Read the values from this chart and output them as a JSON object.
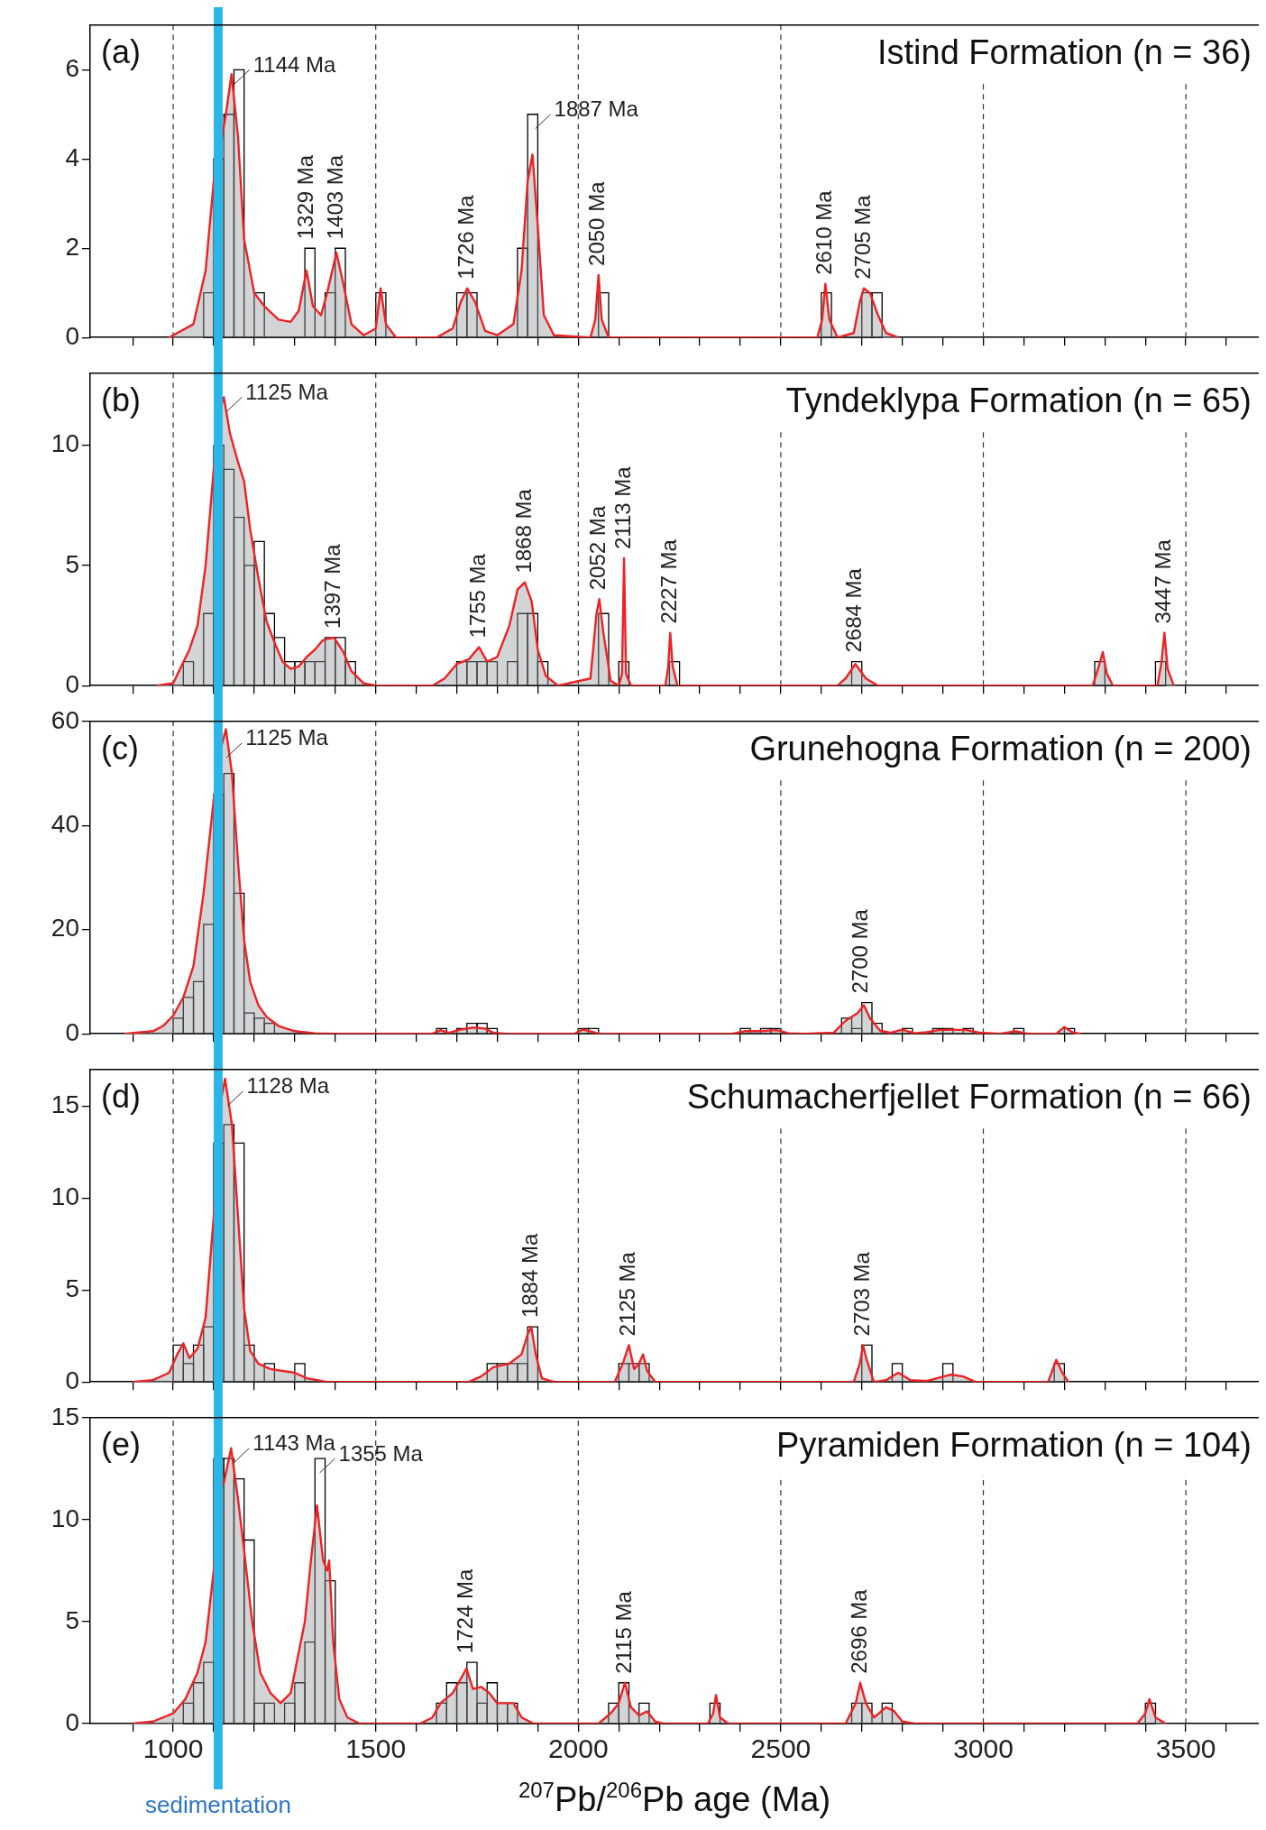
{
  "chart_data": [
    {
      "type": "histogram",
      "title": "Istind Formation (n = 36)",
      "color": "#000000",
      "bins": [
        1075,
        1100,
        1125,
        1150,
        1175,
        1200,
        1225,
        1250,
        1275,
        1300,
        1325,
        1350,
        1375,
        1400,
        1425,
        1450,
        1475,
        1500,
        1525,
        1550,
        1575,
        1600,
        1625,
        1650,
        1675,
        1700,
        1725,
        1750,
        1775,
        1800,
        1825,
        1850,
        1875,
        1900,
        1925,
        1950,
        1975,
        2000,
        2025,
        2050,
        2075,
        2100,
        2125,
        2150,
        2175,
        2200,
        2225,
        2250,
        2275,
        2300,
        2325,
        2350,
        2375,
        2400,
        2425,
        2450,
        2475,
        2500,
        2525,
        2550,
        2575,
        2600,
        2625,
        2650,
        2675,
        2700,
        2725,
        2750
      ],
      "values": [
        1,
        4,
        5,
        6,
        0,
        1,
        0,
        0,
        0,
        0,
        2,
        0,
        1,
        2,
        0,
        0,
        0,
        1,
        0,
        0,
        0,
        0,
        0,
        0,
        0,
        1,
        1,
        0,
        0,
        0,
        0,
        2,
        5,
        0,
        0,
        0,
        0,
        0,
        0,
        1,
        0,
        0,
        0,
        0,
        0,
        0,
        0,
        0,
        0,
        0,
        0,
        0,
        0,
        0,
        0,
        0,
        0,
        0,
        0,
        0,
        0,
        1,
        0,
        0,
        0,
        1,
        1
      ],
      "series": [
        {
          "type": "area",
          "color": "#ed2224",
          "x": [
            990,
            1000,
            1050,
            1080,
            1100,
            1115,
            1130,
            1144,
            1160,
            1175,
            1200,
            1225,
            1260,
            1290,
            1310,
            1329,
            1345,
            1365,
            1380,
            1403,
            1420,
            1440,
            1470,
            1500,
            1512,
            1525,
            1550,
            1650,
            1690,
            1710,
            1726,
            1745,
            1770,
            1800,
            1840,
            1860,
            1875,
            1887,
            1900,
            1915,
            1940,
            2030,
            2042,
            2050,
            2058,
            2075,
            2590,
            2602,
            2610,
            2620,
            2640,
            2680,
            2695,
            2705,
            2720,
            2740,
            2760,
            2790
          ],
          "values": [
            0,
            0.05,
            0.3,
            1.5,
            3.5,
            4.2,
            5.0,
            5.9,
            4.5,
            2.2,
            1.0,
            0.7,
            0.4,
            0.35,
            0.6,
            1.5,
            0.7,
            0.5,
            1.0,
            1.9,
            1.2,
            0.3,
            0.05,
            0.2,
            1.1,
            0.3,
            0,
            0,
            0.2,
            0.8,
            1.1,
            0.8,
            0.15,
            0.05,
            0.3,
            1.5,
            3.5,
            4.1,
            2.5,
            0.5,
            0.05,
            0,
            0.4,
            1.4,
            0.4,
            0,
            0,
            0.4,
            1.2,
            0.4,
            0,
            0.1,
            0.8,
            1.1,
            1.0,
            0.5,
            0.1,
            0
          ]
        }
      ],
      "xlim": [
        795,
        3680
      ],
      "xticks": [
        {
          "value": 900,
          "label": null
        },
        1000,
        {
          "value": 1100,
          "label": null
        },
        {
          "value": 1200,
          "label": null
        },
        {
          "value": 1300,
          "label": null
        },
        {
          "value": 1400,
          "label": null
        },
        1500,
        {
          "value": 1600,
          "label": null
        },
        {
          "value": 1700,
          "label": null
        },
        {
          "value": 1800,
          "label": null
        },
        {
          "value": 1900,
          "label": null
        },
        2000,
        {
          "value": 2100,
          "label": null
        },
        {
          "value": 2200,
          "label": null
        },
        {
          "value": 2300,
          "label": null
        },
        {
          "value": 2400,
          "label": null
        },
        2500,
        {
          "value": 2600,
          "label": null
        },
        {
          "value": 2700,
          "label": null
        },
        {
          "value": 2800,
          "label": null
        },
        {
          "value": 2900,
          "label": null
        },
        3000,
        {
          "value": 3100,
          "label": null
        },
        {
          "value": 3200,
          "label": null
        },
        {
          "value": 3300,
          "label": null
        },
        {
          "value": 3400,
          "label": null
        },
        3500,
        {
          "value": 3600,
          "label": null
        }
      ],
      "ylim": [
        0,
        7
      ],
      "yticks": [
        0,
        2,
        4,
        6
      ],
      "grid": "x",
      "tick_labels": "y",
      "bands": [
        {
          "axis": "x",
          "from": 1100,
          "to": 1122,
          "color": "#29b6e8"
        }
      ],
      "annotations": [
        "(a)",
        {
          "text": "1144 Ma",
          "x": 1144,
          "y": 6
        },
        {
          "text": "1329 Ma",
          "x": 1329,
          "y": 2
        },
        {
          "text": "1403 Ma",
          "x": 1403,
          "y": 2
        },
        {
          "text": "1726 Ma",
          "x": 1726,
          "y": 1.1
        },
        {
          "text": "1887 Ma",
          "x": 1887,
          "y": 5
        },
        {
          "text": "2050 Ma",
          "x": 2050,
          "y": 1.4
        },
        {
          "text": "2610 Ma",
          "x": 2610,
          "y": 1.2
        },
        {
          "text": "2705 Ma",
          "x": 2705,
          "y": 1.1
        }
      ]
    },
    {
      "type": "histogram",
      "title": "Tyndeklypa Formation (n = 65)",
      "color": "#000000",
      "bins": [
        1025,
        1050,
        1075,
        1100,
        1125,
        1150,
        1175,
        1200,
        1225,
        1250,
        1275,
        1300,
        1325,
        1350,
        1375,
        1400,
        1425,
        1450,
        1475,
        1500,
        1525,
        1550,
        1575,
        1600,
        1625,
        1650,
        1675,
        1700,
        1725,
        1750,
        1775,
        1800,
        1825,
        1850,
        1875,
        1900,
        1925,
        1950,
        1975,
        2000,
        2025,
        2050,
        2075,
        2100,
        2125,
        2150,
        2175,
        2200,
        2225,
        2250,
        2275,
        2300,
        2325,
        2350,
        2375,
        2400,
        2425,
        2450,
        2475,
        2500,
        2525,
        2550,
        2575,
        2600,
        2625,
        2650,
        2675,
        2700,
        2725,
        2750,
        2775,
        2800,
        2825,
        2850,
        2875,
        2900,
        2925,
        2950,
        2975,
        3000,
        3025,
        3050,
        3075,
        3100,
        3125,
        3150,
        3175,
        3200,
        3225,
        3250,
        3275,
        3300,
        3325,
        3350,
        3375,
        3400,
        3425,
        3450
      ],
      "values": [
        1,
        0,
        3,
        10,
        9,
        7,
        5,
        6,
        3,
        2,
        1,
        1,
        1,
        1,
        2,
        2,
        1,
        0,
        0,
        0,
        0,
        0,
        0,
        0,
        0,
        0,
        0,
        1,
        1,
        1,
        1,
        0,
        1,
        3,
        3,
        1,
        0,
        0,
        0,
        0,
        0,
        3,
        0,
        1,
        0,
        0,
        0,
        0,
        1,
        0,
        0,
        0,
        0,
        0,
        0,
        0,
        0,
        0,
        0,
        0,
        0,
        0,
        0,
        0,
        0,
        0,
        1,
        0,
        0,
        0,
        0,
        0,
        0,
        0,
        0,
        0,
        0,
        0,
        0,
        0,
        0,
        0,
        0,
        0,
        0,
        0,
        0,
        0,
        0,
        0,
        1,
        0,
        0,
        0,
        0,
        0,
        1
      ],
      "series": [
        {
          "type": "area",
          "color": "#ed2224",
          "x": [
            960,
            1000,
            1020,
            1040,
            1060,
            1080,
            1100,
            1115,
            1125,
            1140,
            1160,
            1175,
            1190,
            1210,
            1230,
            1250,
            1270,
            1290,
            1310,
            1330,
            1350,
            1370,
            1397,
            1420,
            1440,
            1470,
            1500,
            1640,
            1670,
            1700,
            1730,
            1755,
            1775,
            1800,
            1830,
            1850,
            1868,
            1885,
            1900,
            1920,
            1950,
            2030,
            2045,
            2052,
            2062,
            2080,
            2100,
            2108,
            2113,
            2118,
            2130,
            2215,
            2222,
            2227,
            2233,
            2245,
            2640,
            2660,
            2684,
            2710,
            2740,
            3270,
            3285,
            3295,
            3305,
            3320,
            3430,
            3440,
            3447,
            3455,
            3470
          ],
          "values": [
            0,
            0.1,
            0.8,
            1.5,
            2.5,
            5,
            9,
            11.5,
            12,
            10.5,
            9.3,
            8.5,
            6.5,
            4.5,
            2.7,
            1.8,
            1.0,
            0.7,
            0.8,
            1.2,
            1.5,
            1.9,
            2.0,
            1.4,
            0.6,
            0.1,
            0,
            0,
            0.3,
            0.9,
            1.1,
            1.6,
            1.0,
            1.2,
            2.5,
            4,
            4.3,
            3.5,
            1.5,
            0.4,
            0,
            0.3,
            3.0,
            3.6,
            2.2,
            0.2,
            0,
            0.5,
            5.3,
            0.5,
            0,
            0,
            0.8,
            2.2,
            0.8,
            0,
            0,
            0.3,
            0.9,
            0.3,
            0,
            0,
            0.8,
            1.4,
            0.5,
            0,
            0,
            1,
            2.2,
            0.7,
            0
          ]
        }
      ],
      "xlim": [
        795,
        3680
      ],
      "xticks": [
        {
          "value": 900,
          "label": null
        },
        1000,
        {
          "value": 1100,
          "label": null
        },
        {
          "value": 1200,
          "label": null
        },
        {
          "value": 1300,
          "label": null
        },
        {
          "value": 1400,
          "label": null
        },
        1500,
        {
          "value": 1600,
          "label": null
        },
        {
          "value": 1700,
          "label": null
        },
        {
          "value": 1800,
          "label": null
        },
        {
          "value": 1900,
          "label": null
        },
        2000,
        {
          "value": 2100,
          "label": null
        },
        {
          "value": 2200,
          "label": null
        },
        {
          "value": 2300,
          "label": null
        },
        {
          "value": 2400,
          "label": null
        },
        2500,
        {
          "value": 2600,
          "label": null
        },
        {
          "value": 2700,
          "label": null
        },
        {
          "value": 2800,
          "label": null
        },
        {
          "value": 2900,
          "label": null
        },
        3000,
        {
          "value": 3100,
          "label": null
        },
        {
          "value": 3200,
          "label": null
        },
        {
          "value": 3300,
          "label": null
        },
        {
          "value": 3400,
          "label": null
        },
        3500,
        {
          "value": 3600,
          "label": null
        }
      ],
      "ylim": [
        0,
        13
      ],
      "yticks": [
        0,
        5,
        10
      ],
      "grid": "x",
      "tick_labels": "y",
      "bands": [
        {
          "axis": "x",
          "from": 1100,
          "to": 1122,
          "color": "#29b6e8"
        }
      ],
      "annotations": [
        "(b)",
        {
          "text": "1125 Ma",
          "x": 1125,
          "y": 12
        },
        {
          "text": "1397 Ma",
          "x": 1397,
          "y": 2
        },
        {
          "text": "1755 Ma",
          "x": 1755,
          "y": 1.6
        },
        {
          "text": "1868 Ma",
          "x": 1868,
          "y": 4.3
        },
        {
          "text": "2052 Ma",
          "x": 2052,
          "y": 3.6
        },
        {
          "text": "2113 Ma",
          "x": 2113,
          "y": 5.3
        },
        {
          "text": "2227 Ma",
          "x": 2227,
          "y": 2.2
        },
        {
          "text": "2684 Ma",
          "x": 2684,
          "y": 1
        },
        {
          "text": "3447 Ma",
          "x": 3447,
          "y": 2.2
        }
      ]
    },
    {
      "type": "histogram",
      "title": "Grunehogna Formation (n = 200)",
      "color": "#000000",
      "bins": [
        1000,
        1025,
        1050,
        1075,
        1100,
        1125,
        1150,
        1175,
        1200,
        1225,
        1250,
        1275,
        1300,
        1325,
        1350,
        1375,
        1400,
        1425,
        1450,
        1475,
        1500,
        1525,
        1550,
        1575,
        1600,
        1625,
        1650,
        1675,
        1700,
        1725,
        1750,
        1775,
        1800,
        1825,
        1850,
        1875,
        1900,
        1925,
        1950,
        1975,
        2000,
        2025,
        2050,
        2075,
        2100,
        2125,
        2150,
        2175,
        2200,
        2225,
        2250,
        2275,
        2300,
        2325,
        2350,
        2375,
        2400,
        2425,
        2450,
        2475,
        2500,
        2525,
        2550,
        2575,
        2600,
        2625,
        2650,
        2675,
        2700,
        2725,
        2750,
        2775,
        2800,
        2825,
        2850,
        2875,
        2900,
        2925,
        2950,
        2975,
        3000,
        3025,
        3050,
        3075,
        3100,
        3125,
        3150,
        3175,
        3200,
        3225
      ],
      "values": [
        3,
        7,
        10,
        21,
        46,
        50,
        27,
        4,
        3,
        2,
        0,
        0,
        0,
        0,
        0,
        0,
        0,
        0,
        0,
        0,
        0,
        0,
        0,
        0,
        0,
        0,
        1,
        0,
        1,
        2,
        2,
        1,
        0,
        0,
        0,
        0,
        0,
        0,
        0,
        0,
        1,
        1,
        0,
        0,
        0,
        0,
        0,
        0,
        0,
        0,
        0,
        0,
        0,
        0,
        0,
        0,
        1,
        0,
        1,
        1,
        0,
        0,
        0,
        0,
        0,
        0,
        3,
        1,
        6,
        2,
        0,
        0,
        1,
        0,
        0,
        1,
        1,
        0,
        1,
        0,
        0,
        0,
        0,
        1,
        0,
        0,
        0,
        0,
        1
      ],
      "series": [
        {
          "type": "area",
          "color": "#ed2224",
          "x": [
            880,
            950,
            975,
            1000,
            1025,
            1050,
            1075,
            1100,
            1115,
            1130,
            1145,
            1160,
            1175,
            1190,
            1210,
            1230,
            1260,
            1300,
            1350,
            1400,
            1640,
            1660,
            1680,
            1710,
            1740,
            1770,
            1790,
            1820,
            1990,
            2010,
            2030,
            2050,
            2380,
            2410,
            2450,
            2490,
            2520,
            2560,
            2630,
            2660,
            2690,
            2705,
            2720,
            2745,
            2770,
            2800,
            2830,
            2860,
            2890,
            2920,
            2960,
            2990,
            3040,
            3080,
            3110,
            3180,
            3200,
            3220,
            3240
          ],
          "values": [
            0,
            0.5,
            1.5,
            3.5,
            7,
            13,
            27,
            45,
            54,
            58.5,
            50,
            33,
            18,
            10,
            5.5,
            3.3,
            1.5,
            0.5,
            0.1,
            0,
            0,
            0.7,
            0.2,
            0.8,
            1.2,
            1,
            0.2,
            0,
            0,
            0.8,
            0.5,
            0,
            0,
            0.5,
            0.5,
            0.7,
            0.1,
            0,
            0.2,
            2.5,
            4,
            5.5,
            3,
            0.6,
            0.2,
            0.8,
            0.1,
            0.3,
            0.7,
            0.8,
            0.7,
            0.2,
            0,
            0.5,
            0,
            0,
            1.3,
            0.3,
            0
          ]
        }
      ],
      "xlim": [
        795,
        3680
      ],
      "xticks": [
        {
          "value": 900,
          "label": null
        },
        1000,
        {
          "value": 1100,
          "label": null
        },
        {
          "value": 1200,
          "label": null
        },
        {
          "value": 1300,
          "label": null
        },
        {
          "value": 1400,
          "label": null
        },
        1500,
        {
          "value": 1600,
          "label": null
        },
        {
          "value": 1700,
          "label": null
        },
        {
          "value": 1800,
          "label": null
        },
        {
          "value": 1900,
          "label": null
        },
        2000,
        {
          "value": 2100,
          "label": null
        },
        {
          "value": 2200,
          "label": null
        },
        {
          "value": 2300,
          "label": null
        },
        {
          "value": 2400,
          "label": null
        },
        2500,
        {
          "value": 2600,
          "label": null
        },
        {
          "value": 2700,
          "label": null
        },
        {
          "value": 2800,
          "label": null
        },
        {
          "value": 2900,
          "label": null
        },
        3000,
        {
          "value": 3100,
          "label": null
        },
        {
          "value": 3200,
          "label": null
        },
        {
          "value": 3300,
          "label": null
        },
        {
          "value": 3400,
          "label": null
        },
        3500,
        {
          "value": 3600,
          "label": null
        }
      ],
      "ylim": [
        0,
        60
      ],
      "yticks": [
        0,
        20,
        40,
        60
      ],
      "grid": "x",
      "tick_labels": "y",
      "bands": [
        {
          "axis": "x",
          "from": 1100,
          "to": 1122,
          "color": "#29b6e8"
        }
      ],
      "annotations": [
        "(c)",
        {
          "text": "1125 Ma",
          "x": 1125,
          "y": 58.5
        },
        {
          "text": "2700 Ma",
          "x": 2700,
          "y": 6
        }
      ]
    },
    {
      "type": "histogram",
      "title": "Schumacherfjellet Formation (n = 66)",
      "color": "#000000",
      "bins": [
        1000,
        1025,
        1050,
        1075,
        1100,
        1125,
        1150,
        1175,
        1200,
        1225,
        1250,
        1275,
        1300,
        1325,
        1350,
        1375,
        1400,
        1425,
        1450,
        1475,
        1500,
        1525,
        1550,
        1575,
        1600,
        1625,
        1650,
        1675,
        1700,
        1725,
        1750,
        1775,
        1800,
        1825,
        1850,
        1875,
        1900,
        1925,
        1950,
        1975,
        2000,
        2025,
        2050,
        2075,
        2100,
        2125,
        2150,
        2175,
        2200,
        2225,
        2250,
        2275,
        2300,
        2325,
        2350,
        2375,
        2400,
        2425,
        2450,
        2475,
        2500,
        2525,
        2550,
        2575,
        2600,
        2625,
        2650,
        2675,
        2700,
        2725,
        2750,
        2775,
        2800,
        2825,
        2850,
        2875,
        2900,
        2925,
        2950,
        2975,
        3000,
        3025,
        3050,
        3075,
        3100,
        3125,
        3150,
        3175,
        3200
      ],
      "values": [
        2,
        1,
        2,
        3,
        13,
        14,
        13,
        2,
        0,
        1,
        0,
        0,
        1,
        0,
        0,
        0,
        0,
        0,
        0,
        0,
        0,
        0,
        0,
        0,
        0,
        0,
        0,
        0,
        0,
        0,
        0,
        1,
        1,
        1,
        1,
        3,
        0,
        0,
        0,
        0,
        0,
        0,
        0,
        0,
        1,
        1,
        1,
        0,
        0,
        0,
        0,
        0,
        0,
        0,
        0,
        0,
        0,
        0,
        0,
        0,
        0,
        0,
        0,
        0,
        0,
        0,
        0,
        0,
        2,
        0,
        0,
        1,
        0,
        0,
        0,
        0,
        1,
        0,
        0,
        0,
        0,
        0,
        0,
        0,
        0,
        0,
        0,
        1
      ],
      "series": [
        {
          "type": "area",
          "color": "#ed2224",
          "x": [
            900,
            950,
            990,
            1010,
            1025,
            1040,
            1060,
            1080,
            1100,
            1115,
            1128,
            1145,
            1160,
            1175,
            1190,
            1210,
            1240,
            1270,
            1300,
            1330,
            1380,
            1730,
            1760,
            1790,
            1830,
            1860,
            1875,
            1884,
            1895,
            1910,
            1940,
            2090,
            2110,
            2125,
            2138,
            2150,
            2160,
            2170,
            2190,
            2680,
            2695,
            2703,
            2712,
            2730,
            2760,
            2790,
            2820,
            2860,
            2920,
            2950,
            2980,
            3160,
            3180,
            3195,
            3210
          ],
          "values": [
            0,
            0.1,
            0.5,
            1.5,
            2.1,
            1.3,
            1.8,
            3.5,
            9,
            15,
            16.5,
            14,
            9,
            4,
            1.7,
            1.0,
            0.7,
            0.6,
            0.5,
            0.2,
            0,
            0,
            0.3,
            0.8,
            1.0,
            1.5,
            2.6,
            3.0,
            1.5,
            0.2,
            0,
            0,
            1.0,
            2.0,
            0.7,
            1.0,
            1.5,
            0.6,
            0,
            0,
            1,
            2,
            1.2,
            0,
            0.1,
            0.5,
            0.1,
            0.05,
            0.4,
            0.3,
            0,
            0,
            1.2,
            0.5,
            0
          ]
        }
      ],
      "xlim": [
        795,
        3680
      ],
      "xticks": [
        {
          "value": 900,
          "label": null
        },
        1000,
        {
          "value": 1100,
          "label": null
        },
        {
          "value": 1200,
          "label": null
        },
        {
          "value": 1300,
          "label": null
        },
        {
          "value": 1400,
          "label": null
        },
        1500,
        {
          "value": 1600,
          "label": null
        },
        {
          "value": 1700,
          "label": null
        },
        {
          "value": 1800,
          "label": null
        },
        {
          "value": 1900,
          "label": null
        },
        2000,
        {
          "value": 2100,
          "label": null
        },
        {
          "value": 2200,
          "label": null
        },
        {
          "value": 2300,
          "label": null
        },
        {
          "value": 2400,
          "label": null
        },
        2500,
        {
          "value": 2600,
          "label": null
        },
        {
          "value": 2700,
          "label": null
        },
        {
          "value": 2800,
          "label": null
        },
        {
          "value": 2900,
          "label": null
        },
        3000,
        {
          "value": 3100,
          "label": null
        },
        {
          "value": 3200,
          "label": null
        },
        {
          "value": 3300,
          "label": null
        },
        {
          "value": 3400,
          "label": null
        },
        3500,
        {
          "value": 3600,
          "label": null
        }
      ],
      "ylim": [
        0,
        17
      ],
      "yticks": [
        0,
        5,
        10,
        15
      ],
      "grid": "x",
      "tick_labels": "y",
      "bands": [
        {
          "axis": "x",
          "from": 1100,
          "to": 1122,
          "color": "#29b6e8"
        }
      ],
      "annotations": [
        "(d)",
        {
          "text": "1128 Ma",
          "x": 1128,
          "y": 16.5
        },
        {
          "text": "1884 Ma",
          "x": 1884,
          "y": 3
        },
        {
          "text": "2125 Ma",
          "x": 2125,
          "y": 2
        },
        {
          "text": "2703 Ma",
          "x": 2703,
          "y": 2
        }
      ]
    },
    {
      "type": "histogram",
      "title": "Pyramiden Formation (n = 104)",
      "xlabel": "$^{207}$Pb/$^{206}$Pb age (Ma)",
      "color": "#000000",
      "bins": [
        1025,
        1050,
        1075,
        1100,
        1125,
        1150,
        1175,
        1200,
        1225,
        1250,
        1275,
        1300,
        1325,
        1350,
        1375,
        1400,
        1425,
        1450,
        1475,
        1500,
        1525,
        1550,
        1575,
        1600,
        1625,
        1650,
        1675,
        1700,
        1725,
        1750,
        1775,
        1800,
        1825,
        1850,
        1875,
        1900,
        1925,
        1950,
        1975,
        2000,
        2025,
        2050,
        2075,
        2100,
        2125,
        2150,
        2175,
        2200,
        2225,
        2250,
        2275,
        2300,
        2325,
        2350,
        2375,
        2400,
        2425,
        2450,
        2475,
        2500,
        2525,
        2550,
        2575,
        2600,
        2625,
        2650,
        2675,
        2700,
        2725,
        2750,
        2775,
        2800,
        2825,
        2850,
        2875,
        2900,
        2925,
        2950,
        2975,
        3000,
        3025,
        3050,
        3075,
        3100,
        3125,
        3150,
        3175,
        3200,
        3225,
        3250,
        3275,
        3300,
        3325,
        3350,
        3375,
        3400,
        3425
      ],
      "values": [
        1,
        2,
        3,
        13,
        13,
        12,
        9,
        1,
        1,
        0,
        1,
        2,
        4,
        13,
        7,
        0,
        0,
        0,
        0,
        0,
        0,
        0,
        0,
        0,
        0,
        1,
        2,
        2,
        3,
        1,
        2,
        1,
        1,
        0,
        0,
        0,
        0,
        0,
        0,
        0,
        0,
        0,
        1,
        2,
        0,
        1,
        0,
        0,
        0,
        0,
        0,
        0,
        1,
        0,
        0,
        0,
        0,
        0,
        0,
        0,
        0,
        0,
        0,
        0,
        0,
        0,
        1,
        1,
        0,
        1,
        0,
        0,
        0,
        0,
        0,
        0,
        0,
        0,
        0,
        0,
        0,
        0,
        0,
        0,
        0,
        0,
        0,
        0,
        0,
        0,
        0,
        0,
        0,
        0,
        0,
        1
      ],
      "series": [
        {
          "type": "area",
          "color": "#ed2224",
          "x": [
            900,
            950,
            1000,
            1030,
            1060,
            1080,
            1100,
            1115,
            1125,
            1143,
            1160,
            1175,
            1195,
            1215,
            1240,
            1265,
            1290,
            1310,
            1325,
            1340,
            1355,
            1370,
            1380,
            1385,
            1395,
            1410,
            1430,
            1460,
            1610,
            1640,
            1660,
            1690,
            1710,
            1724,
            1740,
            1760,
            1780,
            1800,
            1820,
            1840,
            1860,
            1890,
            2050,
            2080,
            2100,
            2115,
            2130,
            2150,
            2170,
            2190,
            2210,
            2320,
            2333,
            2340,
            2350,
            2370,
            2660,
            2685,
            2696,
            2710,
            2730,
            2760,
            2780,
            2800,
            2830,
            3380,
            3400,
            3410,
            3425,
            3450
          ],
          "values": [
            0,
            0.1,
            0.5,
            1.2,
            2.5,
            4,
            7.5,
            11.5,
            11.8,
            13.5,
            11,
            8.5,
            5,
            2.5,
            1.5,
            1.0,
            1.5,
            3.5,
            5.0,
            8,
            10.7,
            8,
            7.5,
            8,
            4,
            1.2,
            0.3,
            0,
            0,
            0.3,
            1.0,
            1.5,
            2.2,
            2.7,
            1.7,
            1.8,
            1.5,
            1.0,
            1.0,
            1.0,
            0.3,
            0,
            0,
            0.5,
            1.0,
            2.0,
            0.8,
            0.4,
            0.6,
            0.1,
            0,
            0,
            0.5,
            1.4,
            0.3,
            0,
            0,
            1,
            2,
            1,
            0.3,
            0.8,
            0.6,
            0.1,
            0,
            0,
            0.5,
            1.2,
            0.3,
            0
          ]
        }
      ],
      "xlim": [
        795,
        3680
      ],
      "xticks": [
        {
          "value": 900,
          "label": null
        },
        1000,
        {
          "value": 1100,
          "label": null
        },
        {
          "value": 1200,
          "label": null
        },
        {
          "value": 1300,
          "label": null
        },
        {
          "value": 1400,
          "label": null
        },
        1500,
        {
          "value": 1600,
          "label": null
        },
        {
          "value": 1700,
          "label": null
        },
        {
          "value": 1800,
          "label": null
        },
        {
          "value": 1900,
          "label": null
        },
        2000,
        {
          "value": 2100,
          "label": null
        },
        {
          "value": 2200,
          "label": null
        },
        {
          "value": 2300,
          "label": null
        },
        {
          "value": 2400,
          "label": null
        },
        2500,
        {
          "value": 2600,
          "label": null
        },
        {
          "value": 2700,
          "label": null
        },
        {
          "value": 2800,
          "label": null
        },
        {
          "value": 2900,
          "label": null
        },
        3000,
        {
          "value": 3100,
          "label": null
        },
        {
          "value": 3200,
          "label": null
        },
        {
          "value": 3300,
          "label": null
        },
        {
          "value": 3400,
          "label": null
        },
        3500,
        {
          "value": 3600,
          "label": null
        }
      ],
      "ylim": [
        0,
        15
      ],
      "yticks": [
        0,
        5,
        10,
        15
      ],
      "grid": "x",
      "bands": [
        {
          "axis": "x",
          "from": 1100,
          "to": 1122,
          "color": "#29b6e8",
          "label": "sedimentation"
        }
      ],
      "annotations": [
        "(e)",
        {
          "text": "1143 Ma",
          "x": 1143,
          "y": 13.5
        },
        {
          "text": "1355 Ma",
          "x": 1355,
          "y": 13
        },
        {
          "text": "1724 Ma",
          "x": 1724,
          "y": 3
        },
        {
          "text": "2115 Ma",
          "x": 2115,
          "y": 2
        },
        {
          "text": "2696 Ma",
          "x": 2696,
          "y": 2
        }
      ]
    }
  ]
}
